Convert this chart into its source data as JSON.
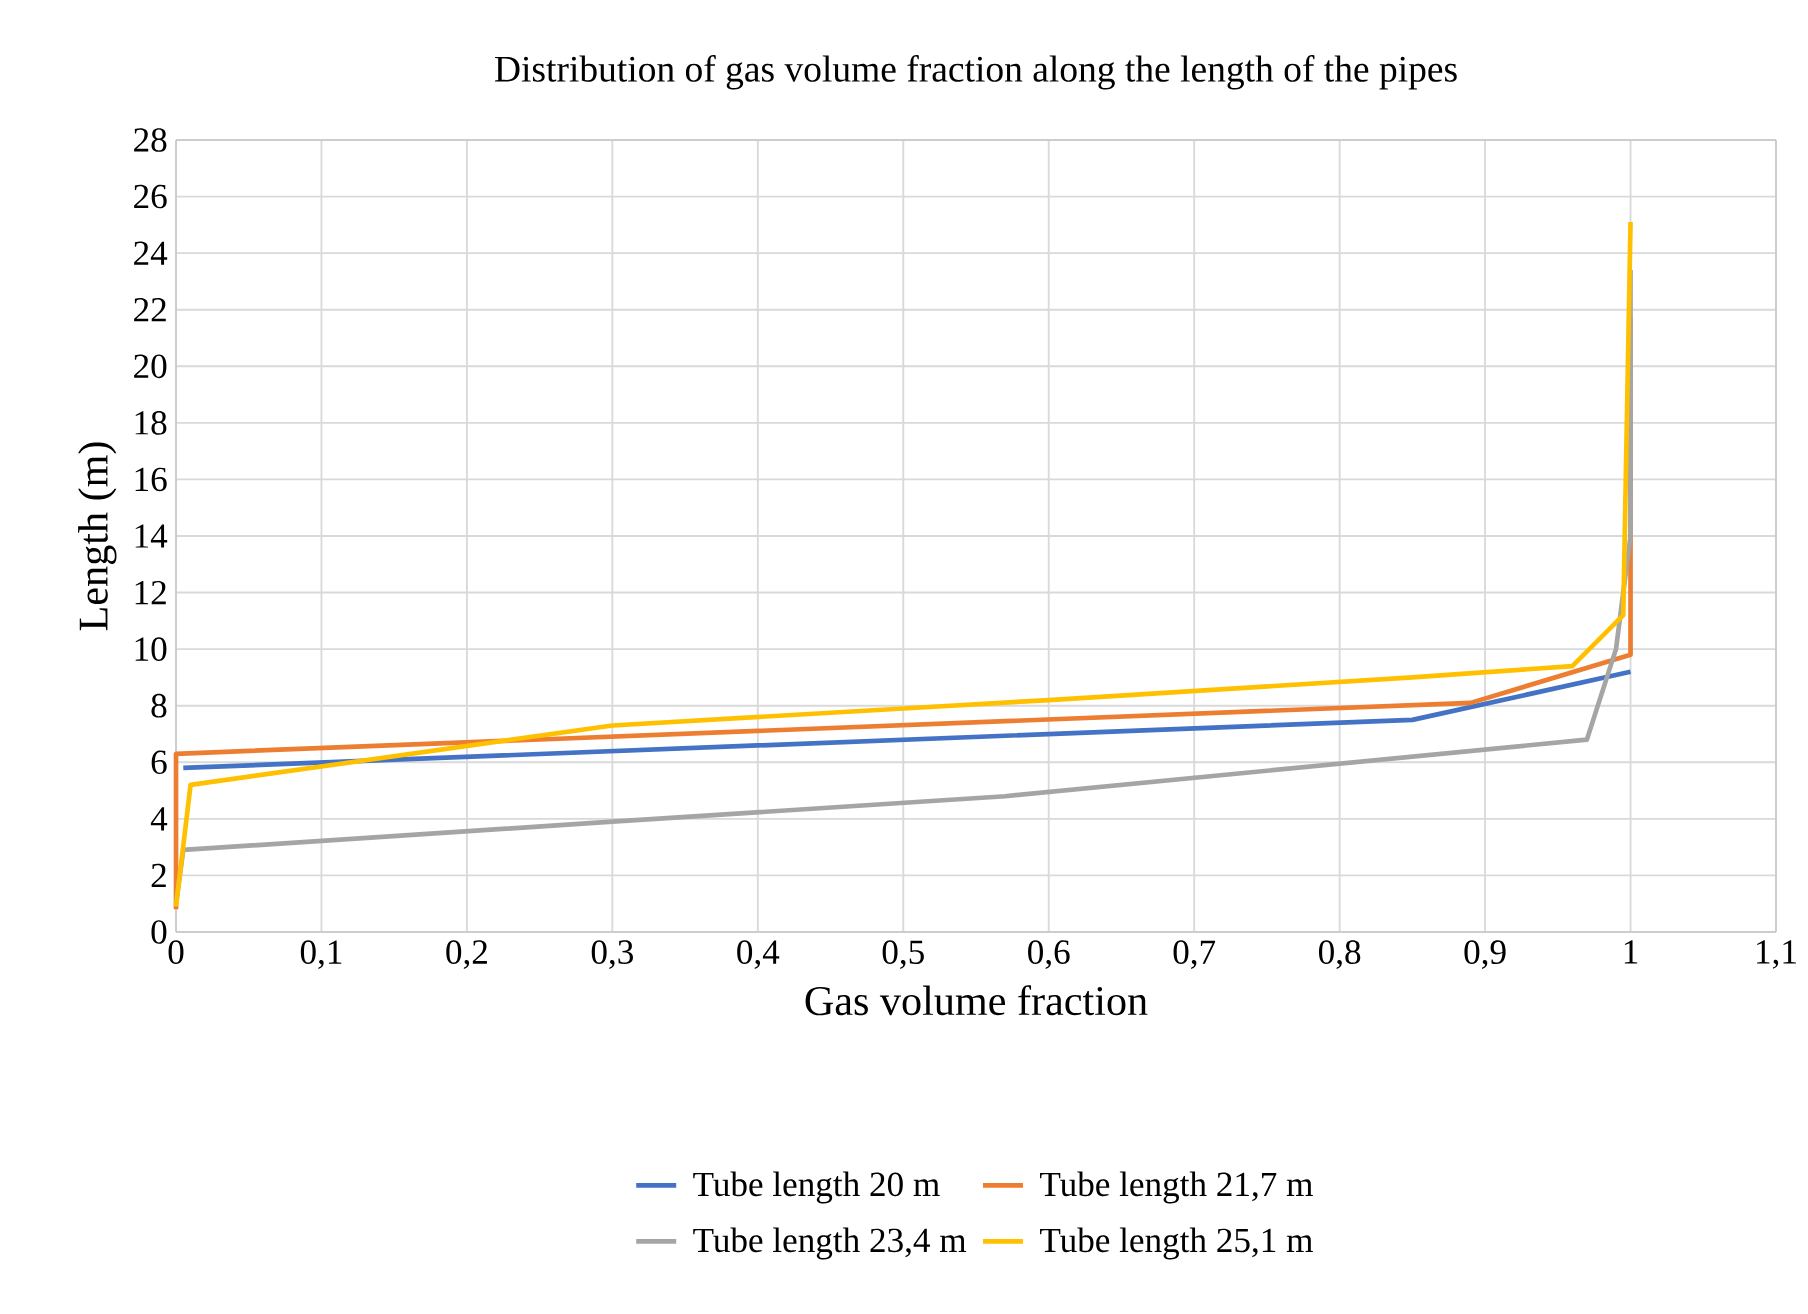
{
  "chart_data": {
    "type": "line",
    "title": "Distribution of gas volume fraction along the length of the pipes",
    "xlabel": "Gas volume fraction",
    "ylabel": "Length (m)",
    "xlim": [
      0,
      1.1
    ],
    "ylim": [
      0,
      28
    ],
    "xticks": [
      0,
      {
        "value": 0.1,
        "label": "0,1"
      },
      {
        "value": 0.2,
        "label": "0,2"
      },
      {
        "value": 0.3,
        "label": "0,3"
      },
      {
        "value": 0.4,
        "label": "0,4"
      },
      {
        "value": 0.5,
        "label": "0,5"
      },
      {
        "value": 0.6,
        "label": "0,6"
      },
      {
        "value": 0.7,
        "label": "0,7"
      },
      {
        "value": 0.8,
        "label": "0,8"
      },
      {
        "value": 0.9,
        "label": "0,9"
      },
      1,
      {
        "value": 1.1,
        "label": "1,1"
      }
    ],
    "yticks": [
      0,
      2,
      4,
      6,
      8,
      10,
      12,
      14,
      16,
      18,
      20,
      22,
      24,
      26,
      28
    ],
    "grid": true,
    "legend": "bottom",
    "marker": "none",
    "line_style": "solid",
    "series": [
      {
        "name": "Tube length 20 m",
        "color": "#4472c4",
        "x": [
          0.005,
          0.85,
          1
        ],
        "values": [
          5.8,
          7.5,
          9.2
        ]
      },
      {
        "name": "Tube length 21,7 m",
        "color": "#ed7d31",
        "x": [
          0,
          0,
          0.89,
          1,
          1
        ],
        "values": [
          0.8,
          6.3,
          8.1,
          9.8,
          21.7
        ]
      },
      {
        "name": "Tube length 23,4 m",
        "color": "#a5a5a5",
        "x": [
          0,
          0.005,
          0.3,
          0.57,
          0.97,
          0.99,
          1,
          1
        ],
        "values": [
          1,
          2.9,
          3.9,
          4.8,
          6.8,
          10,
          14,
          23.4
        ]
      },
      {
        "name": "Tube length 25,1 m",
        "color": "#ffc000",
        "x": [
          0,
          0.01,
          0.3,
          0.5,
          0.6,
          0.85,
          0.96,
          0.995,
          1
        ],
        "values": [
          0.9,
          5.2,
          7.3,
          7.9,
          8.2,
          9.0,
          9.4,
          11.2,
          25.1
        ]
      }
    ]
  }
}
